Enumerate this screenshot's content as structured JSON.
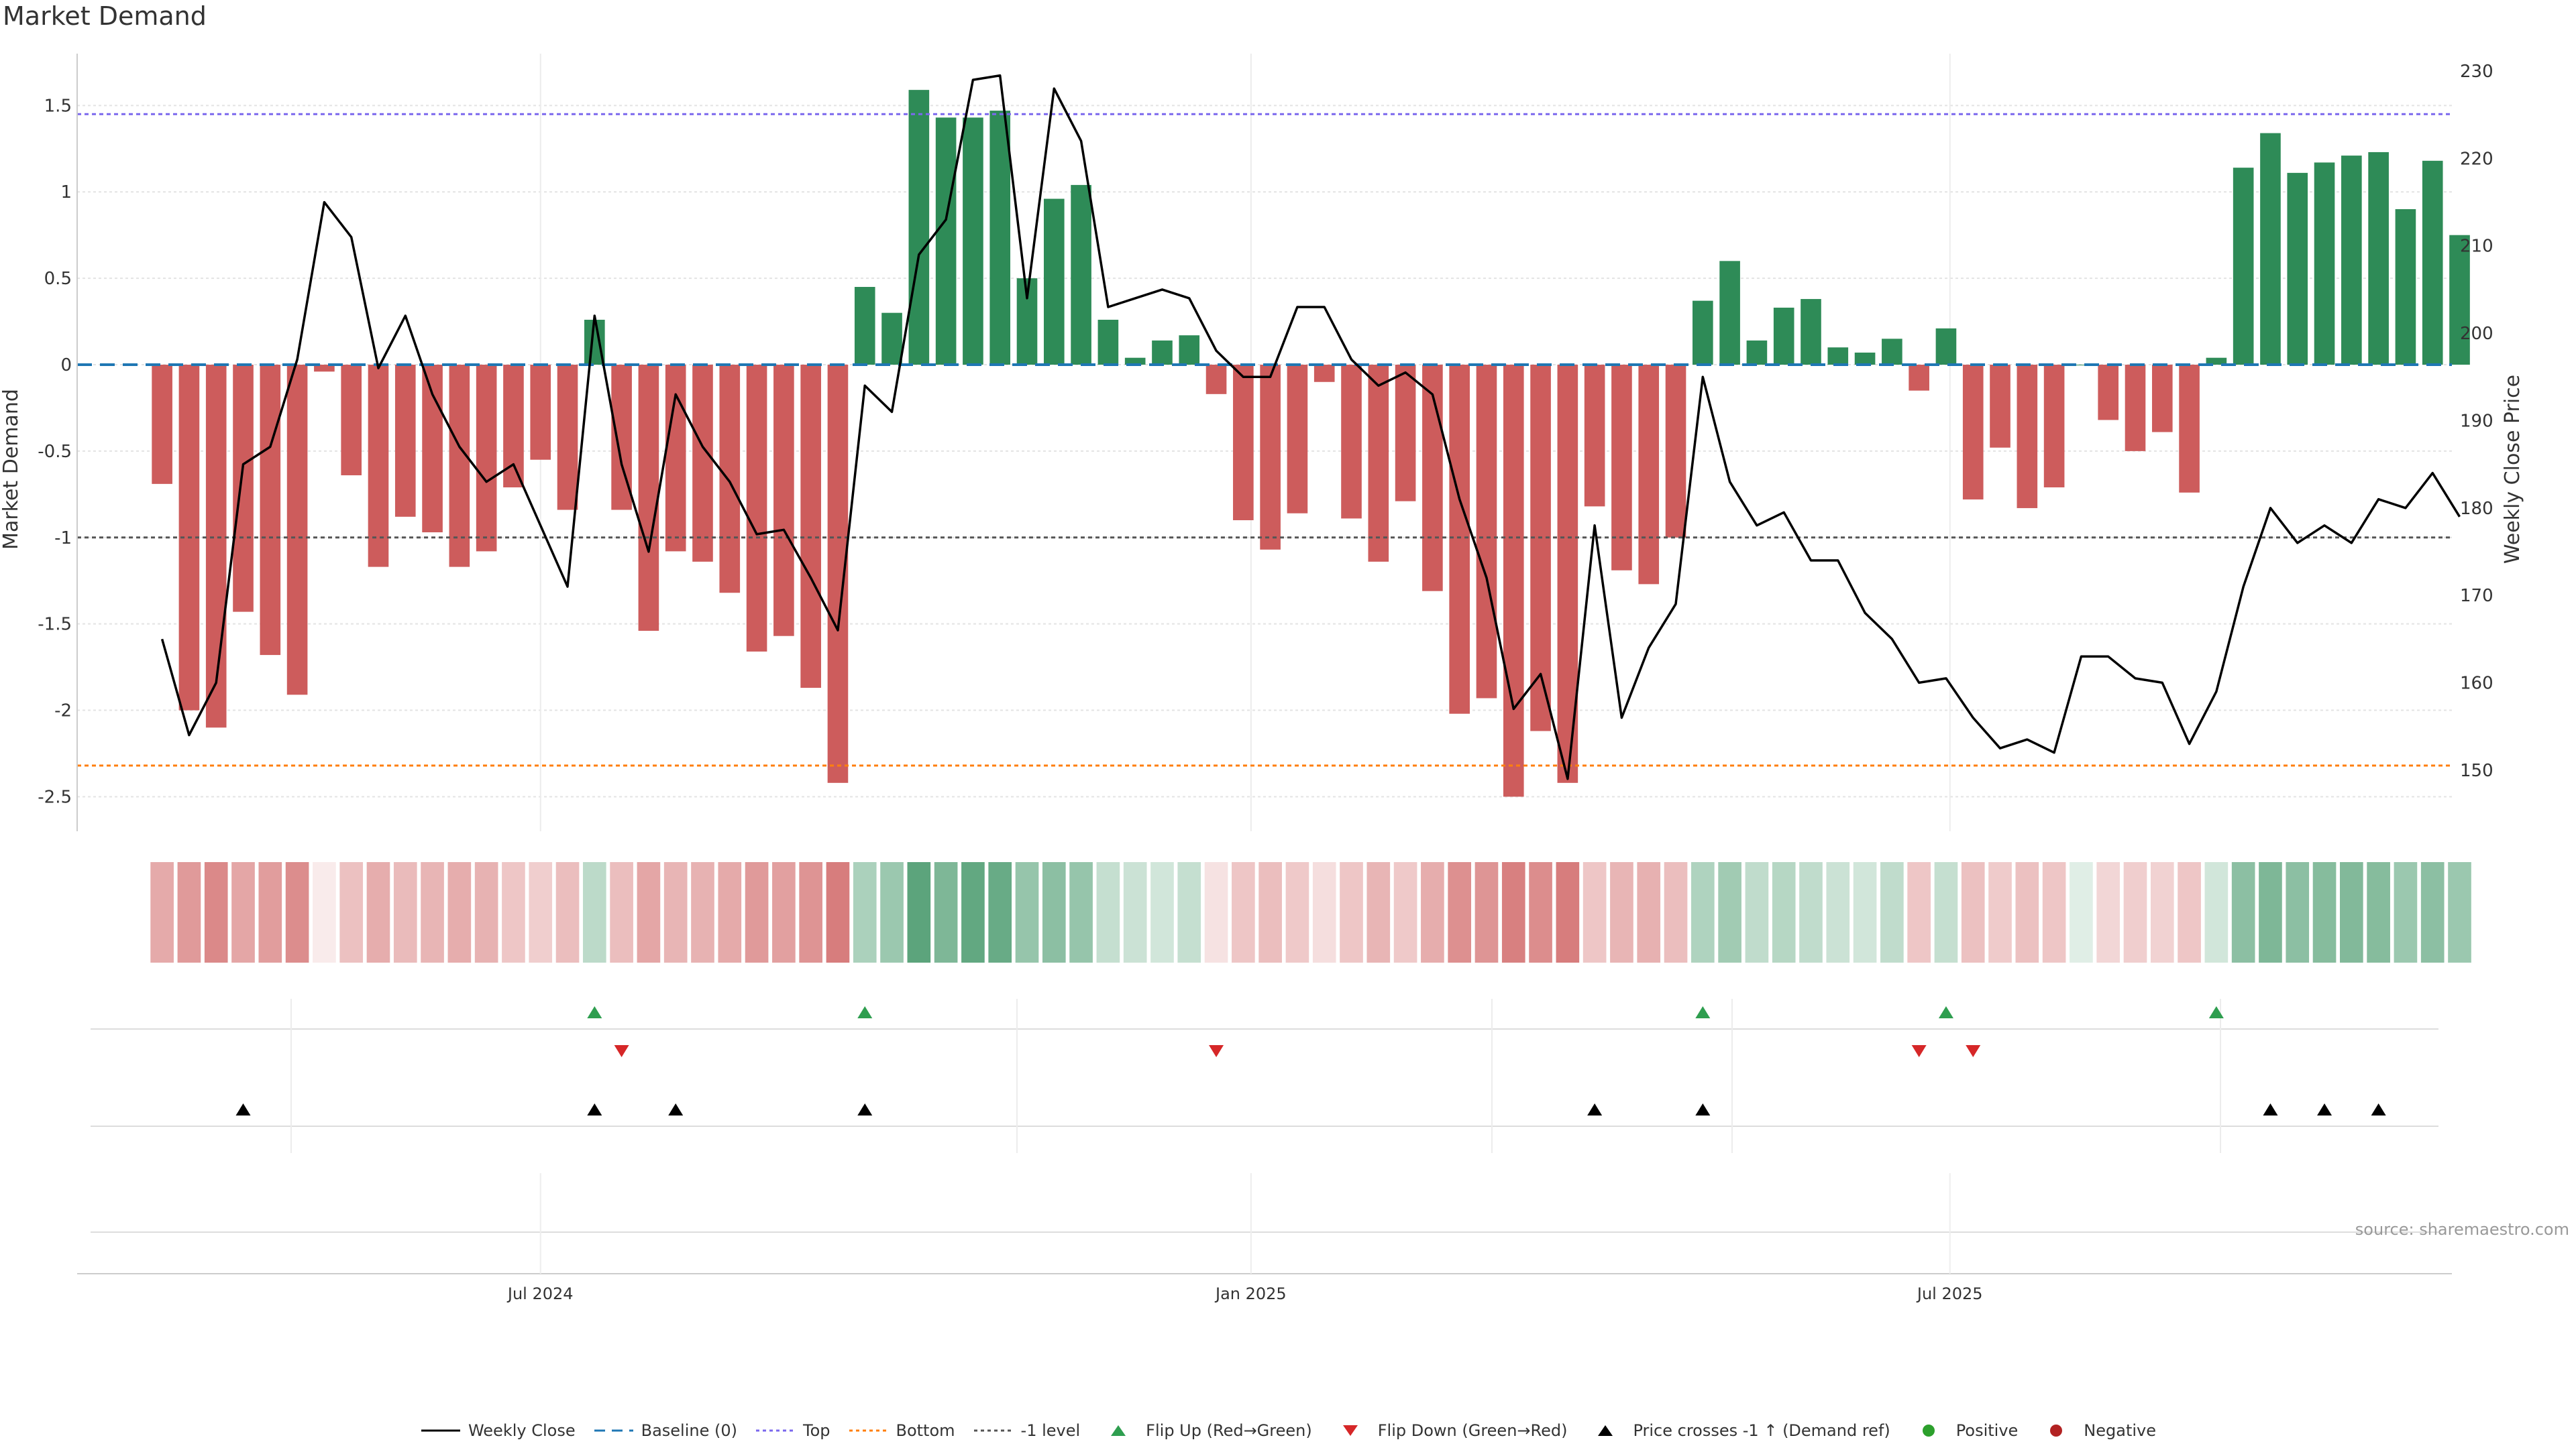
{
  "chart_data": {
    "type": "bar",
    "title": "Market Demand",
    "ylabel": "Market Demand",
    "y2label": "Weekly Close Price",
    "ylim": [
      -2.7,
      1.8
    ],
    "y2lim": [
      143,
      232
    ],
    "yticks": [
      "-2.5",
      "-2",
      "-1.5",
      "-1",
      "-0.5",
      "0",
      "0.5",
      "1",
      "1.5"
    ],
    "y2ticks": [
      "150",
      "160",
      "170",
      "180",
      "190",
      "200",
      "210",
      "220",
      "230"
    ],
    "x_start": "2024-03-03",
    "week_days": 7,
    "x_range_days": [
      0,
      615
    ],
    "xticks": [
      {
        "label": "Jul 2024",
        "day": 120
      },
      {
        "label": "Jan 2025",
        "day": 304
      },
      {
        "label": "Jul 2025",
        "day": 485
      }
    ],
    "reference_lines": {
      "baseline": 0,
      "top": 1.45,
      "bottom": -2.32,
      "minus_one": -1
    },
    "demand": [
      -0.69,
      -2.0,
      -2.1,
      -1.43,
      -1.68,
      -1.91,
      -0.04,
      -0.64,
      -1.17,
      -0.88,
      -0.97,
      -1.17,
      -1.08,
      -0.71,
      -0.55,
      -0.84,
      0.26,
      -0.84,
      -1.54,
      -1.08,
      -1.14,
      -1.32,
      -1.66,
      -1.57,
      -1.87,
      -2.42,
      0.45,
      0.3,
      1.59,
      1.43,
      1.43,
      1.47,
      0.5,
      0.96,
      1.04,
      0.26,
      0.04,
      0.14,
      0.17,
      -0.17,
      -0.9,
      -1.07,
      -0.86,
      -0.1,
      -0.89,
      -1.14,
      -0.79,
      -1.31,
      -2.02,
      -1.93,
      -2.5,
      -2.12,
      -2.42,
      -0.82,
      -1.19,
      -1.27,
      -1.0,
      0.37,
      0.6,
      0.14,
      0.33,
      0.38,
      0.1,
      0.07,
      0.15,
      -0.15,
      0.21,
      -0.78,
      -0.48,
      -0.83,
      -0.71,
      0.0,
      -0.32,
      -0.5,
      -0.39,
      -0.74,
      0.04,
      1.14,
      1.34,
      1.11,
      1.17,
      1.21,
      1.23,
      0.9,
      1.18,
      0.75
    ],
    "weekly_close": [
      165,
      154,
      160,
      185,
      187,
      197,
      215,
      211,
      196,
      202,
      193,
      187,
      183,
      185,
      178,
      171,
      202,
      185,
      175,
      193,
      187,
      183,
      177,
      177.5,
      172,
      166,
      194,
      191,
      209,
      213,
      229,
      229.5,
      204,
      228,
      222,
      203,
      204,
      205,
      204,
      198,
      195,
      195,
      203,
      203,
      197,
      194,
      195.5,
      193,
      181,
      172,
      157,
      161,
      149,
      178,
      156,
      164,
      169,
      195,
      183,
      178,
      179.5,
      174,
      174,
      168,
      165,
      160,
      160.5,
      156,
      152.5,
      153.5,
      152,
      163,
      163,
      160.5,
      160,
      153,
      159,
      171,
      180,
      176,
      178,
      176,
      181,
      180,
      184,
      179
    ],
    "strip_shades": [
      0.52,
      0.62,
      0.72,
      0.55,
      0.6,
      0.7,
      0.12,
      0.38,
      0.5,
      0.42,
      0.45,
      0.5,
      0.47,
      0.35,
      0.3,
      0.4,
      0.32,
      0.4,
      0.55,
      0.45,
      0.47,
      0.52,
      0.62,
      0.58,
      0.66,
      0.8,
      0.4,
      0.48,
      0.78,
      0.62,
      0.75,
      0.72,
      0.5,
      0.55,
      0.5,
      0.28,
      0.25,
      0.22,
      0.28,
      0.18,
      0.35,
      0.4,
      0.33,
      0.2,
      0.35,
      0.45,
      0.33,
      0.5,
      0.68,
      0.65,
      0.78,
      0.7,
      0.8,
      0.35,
      0.45,
      0.48,
      0.4,
      0.38,
      0.45,
      0.3,
      0.35,
      0.3,
      0.25,
      0.22,
      0.3,
      0.35,
      0.28,
      0.38,
      0.32,
      0.38,
      0.35,
      0.15,
      0.25,
      0.3,
      0.28,
      0.35,
      0.22,
      0.55,
      0.62,
      0.55,
      0.58,
      0.6,
      0.58,
      0.48,
      0.55,
      0.48
    ],
    "flip_up_weeks": [
      16,
      26,
      57,
      66,
      76
    ],
    "flip_down_weeks": [
      17,
      39,
      65,
      67
    ],
    "price_cross_weeks": [
      3,
      16,
      19,
      26,
      53,
      57,
      78,
      80,
      82
    ],
    "colors": {
      "positive": "#2e8b57",
      "negative": "#cd5c5c",
      "price": "#000000",
      "baseline": "#1f77b4",
      "top": "#7b68ee",
      "bottom": "#ff7f0e",
      "minus_one": "#555555",
      "flip_up": "#2e9e4f",
      "flip_down": "#d62728",
      "cross": "#000000",
      "positive_dot": "#2ca02c",
      "negative_dot": "#b22222"
    },
    "legend": [
      {
        "key": "weekly_close",
        "label": "Weekly Close"
      },
      {
        "key": "baseline",
        "label": "Baseline (0)"
      },
      {
        "key": "top",
        "label": "Top"
      },
      {
        "key": "bottom",
        "label": "Bottom"
      },
      {
        "key": "minus_one",
        "label": "-1 level"
      },
      {
        "key": "flip_up",
        "label": "Flip Up (Red→Green)"
      },
      {
        "key": "flip_down",
        "label": "Flip Down (Green→Red)"
      },
      {
        "key": "cross",
        "label": "Price crosses -1 ↑ (Demand ref)"
      },
      {
        "key": "positive",
        "label": "Positive"
      },
      {
        "key": "negative",
        "label": "Negative"
      }
    ]
  },
  "source": "source: sharemaestro.com"
}
